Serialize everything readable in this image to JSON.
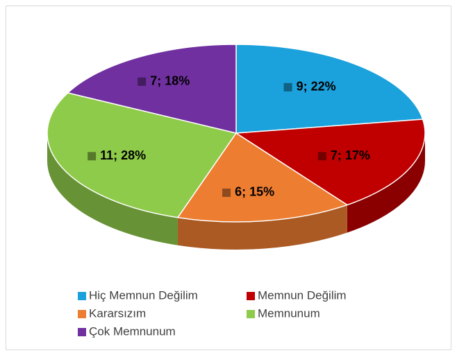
{
  "chart_data": {
    "type": "pie3d",
    "categories": [
      "Hiç Memnun Değilim",
      "Memnun Değilim",
      "Kararsızım",
      "Memnunum",
      "Çok Memnunum"
    ],
    "values": [
      9,
      7,
      6,
      11,
      7
    ],
    "value_labels": [
      "9; 22%",
      "7; 17%",
      "6; 15%",
      "11; 28%",
      "7; 18%"
    ],
    "colors": [
      "#1ba1dc",
      "#c00000",
      "#ed7d31",
      "#8fcb4a",
      "#7030a0"
    ],
    "legend": "bottom"
  }
}
